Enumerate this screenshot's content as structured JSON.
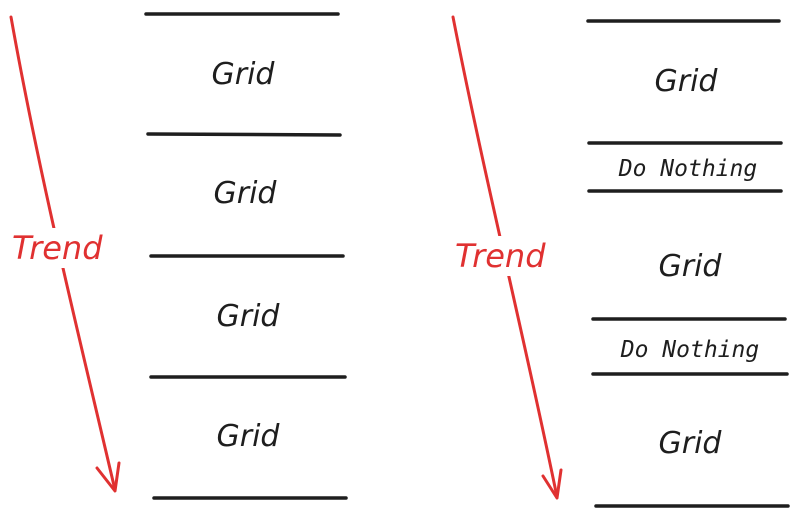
{
  "colors": {
    "trend": "#e03131",
    "ink": "#1e1e1e",
    "background": "#ffffff"
  },
  "left_diagram": {
    "trend_label": "Trend",
    "sections": [
      {
        "label": "Grid",
        "kind": "grid"
      },
      {
        "label": "Grid",
        "kind": "grid"
      },
      {
        "label": "Grid",
        "kind": "grid"
      },
      {
        "label": "Grid",
        "kind": "grid"
      }
    ]
  },
  "right_diagram": {
    "trend_label": "Trend",
    "sections": [
      {
        "label": "Grid",
        "kind": "grid"
      },
      {
        "label": "Do Nothing",
        "kind": "nothing"
      },
      {
        "label": "Grid",
        "kind": "grid"
      },
      {
        "label": "Do Nothing",
        "kind": "nothing"
      },
      {
        "label": "Grid",
        "kind": "grid"
      }
    ]
  }
}
